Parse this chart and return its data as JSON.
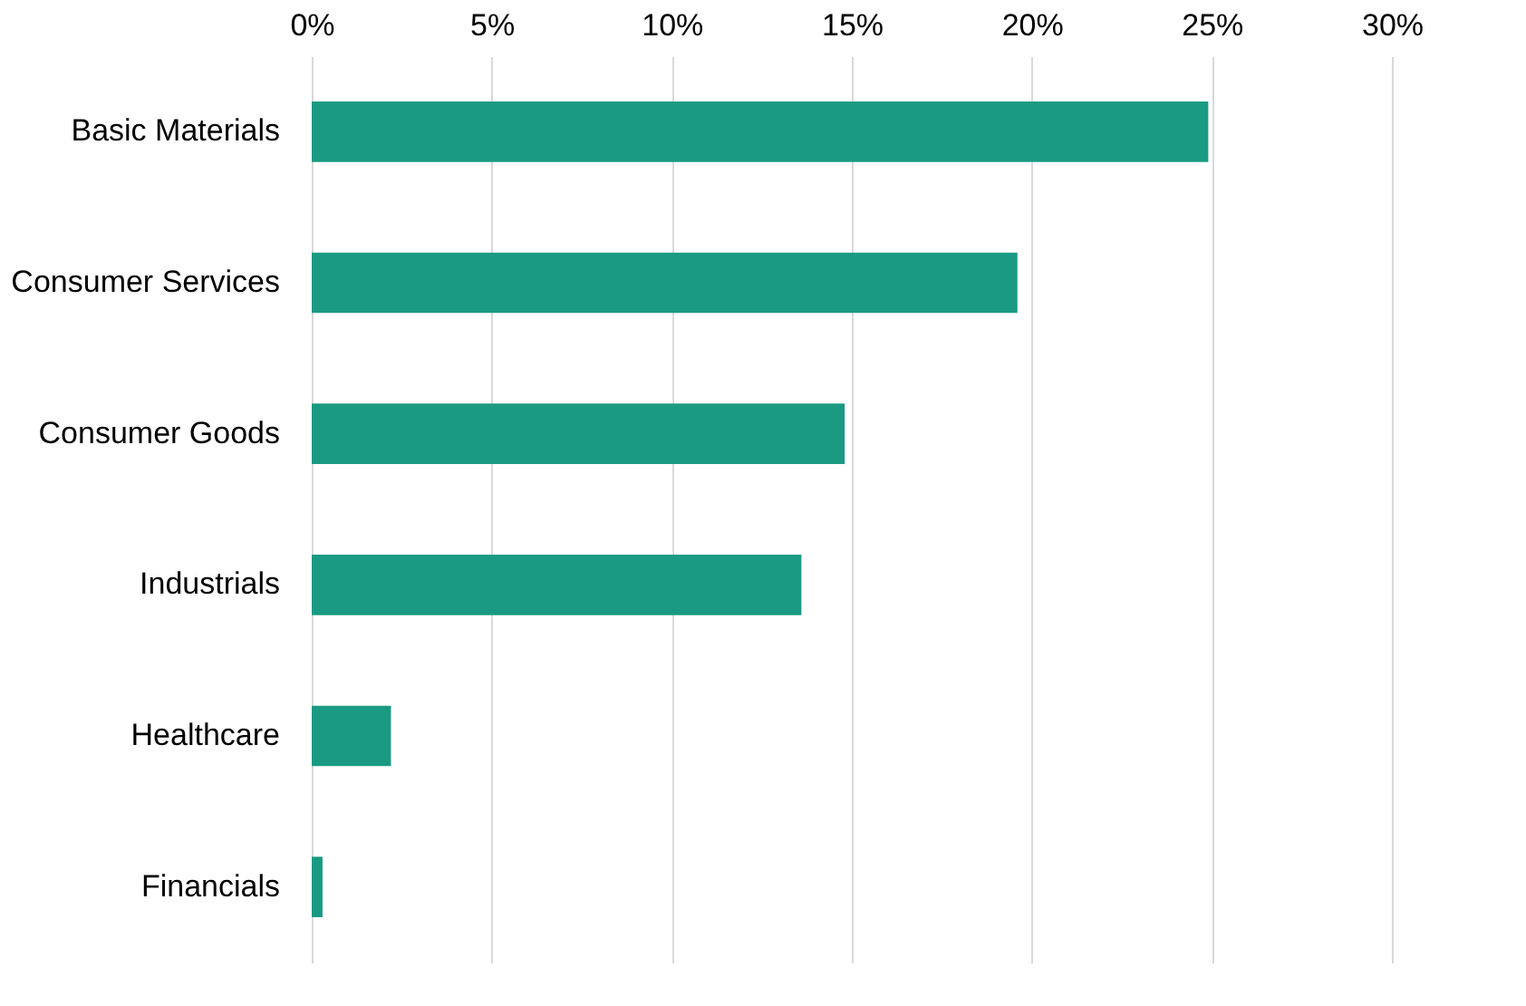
{
  "chart_data": {
    "type": "bar",
    "orientation": "horizontal",
    "categories": [
      "Basic Materials",
      "Consumer Services",
      "Consumer Goods",
      "Industrials",
      "Healthcare",
      "Financials"
    ],
    "values": [
      24.9,
      19.6,
      14.8,
      13.6,
      2.2,
      0.3
    ],
    "color": "#1a9a82",
    "xlim": [
      0,
      30
    ],
    "xticks": [
      {
        "value": 0,
        "label": "0%"
      },
      {
        "value": 5,
        "label": "5%"
      },
      {
        "value": 10,
        "label": "10%"
      },
      {
        "value": 15,
        "label": "15%"
      },
      {
        "value": 20,
        "label": "20%"
      },
      {
        "value": 25,
        "label": "25%"
      },
      {
        "value": 30,
        "label": "30%"
      }
    ],
    "grid": "x"
  }
}
